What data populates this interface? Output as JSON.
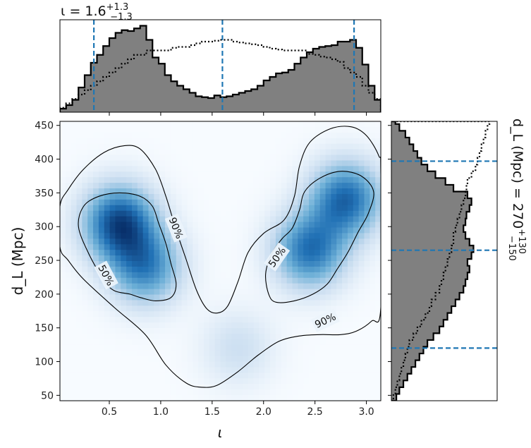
{
  "chart_data": {
    "type": "heatmap",
    "title": {
      "text": "ι = 1.6",
      "sup": "+1.3",
      "sub": "−1.3"
    },
    "side_title": {
      "text": "d_L (Mpc) = 270",
      "sup": "+130",
      "sub": "−150"
    },
    "xlabel": "ι",
    "ylabel": "d_L (Mpc)",
    "xlim": [
      0.02,
      3.14
    ],
    "ylim": [
      42,
      456
    ],
    "xticks": [
      0.5,
      1.0,
      1.5,
      2.0,
      2.5,
      3.0
    ],
    "xtick_labels": [
      "0.5",
      "1.0",
      "1.5",
      "2.0",
      "2.5",
      "3.0"
    ],
    "yticks": [
      50,
      100,
      150,
      200,
      250,
      300,
      350,
      400,
      450
    ],
    "ytick_labels": [
      "50",
      "100",
      "150",
      "200",
      "250",
      "300",
      "350",
      "400",
      "450"
    ],
    "colormap": "Blues",
    "density_peaks": [
      {
        "x": 0.6,
        "y": 305,
        "weight": 1.0
      },
      {
        "x": 0.85,
        "y": 240,
        "weight": 0.7
      },
      {
        "x": 2.8,
        "y": 340,
        "weight": 0.85
      },
      {
        "x": 2.45,
        "y": 265,
        "weight": 0.8
      },
      {
        "x": 1.75,
        "y": 120,
        "weight": 0.2
      }
    ],
    "contours": [
      {
        "label": "50%",
        "label_at": [
          0.47,
          228
        ],
        "label_angle": 62,
        "points": [
          [
            0.45,
            220
          ],
          [
            0.3,
            260
          ],
          [
            0.2,
            300
          ],
          [
            0.25,
            330
          ],
          [
            0.4,
            345
          ],
          [
            0.6,
            350
          ],
          [
            0.8,
            345
          ],
          [
            0.92,
            330
          ],
          [
            0.98,
            305
          ],
          [
            1.05,
            275
          ],
          [
            1.1,
            245
          ],
          [
            1.15,
            215
          ],
          [
            1.1,
            195
          ],
          [
            0.95,
            190
          ],
          [
            0.8,
            195
          ],
          [
            0.7,
            200
          ],
          [
            0.55,
            205
          ]
        ]
      },
      {
        "label": "50%",
        "label_at": [
          2.13,
          255
        ],
        "label_angle": -55,
        "points": [
          [
            2.05,
            200
          ],
          [
            2.02,
            230
          ],
          [
            2.08,
            260
          ],
          [
            2.18,
            282
          ],
          [
            2.28,
            298
          ],
          [
            2.35,
            325
          ],
          [
            2.4,
            352
          ],
          [
            2.55,
            372
          ],
          [
            2.75,
            382
          ],
          [
            2.95,
            375
          ],
          [
            3.07,
            352
          ],
          [
            3.02,
            320
          ],
          [
            2.92,
            292
          ],
          [
            2.82,
            262
          ],
          [
            2.72,
            238
          ],
          [
            2.62,
            215
          ],
          [
            2.48,
            200
          ],
          [
            2.3,
            190
          ],
          [
            2.12,
            188
          ]
        ]
      },
      {
        "label": "90%",
        "label_at": [
          2.6,
          161
        ],
        "label_angle": -25,
        "points": [
          [
            0.02,
            330
          ],
          [
            0.1,
            355
          ],
          [
            0.25,
            385
          ],
          [
            0.45,
            410
          ],
          [
            0.65,
            420
          ],
          [
            0.8,
            415
          ],
          [
            0.95,
            385
          ],
          [
            1.05,
            345
          ],
          [
            1.15,
            295
          ],
          [
            1.25,
            250
          ],
          [
            1.35,
            205
          ],
          [
            1.45,
            178
          ],
          [
            1.55,
            172
          ],
          [
            1.65,
            182
          ],
          [
            1.75,
            218
          ],
          [
            1.85,
            262
          ],
          [
            2.0,
            290
          ],
          [
            2.2,
            310
          ],
          [
            2.3,
            345
          ],
          [
            2.35,
            390
          ],
          [
            2.45,
            425
          ],
          [
            2.65,
            445
          ],
          [
            2.85,
            448
          ],
          [
            3.0,
            435
          ],
          [
            3.12,
            405
          ],
          [
            3.14,
            380
          ],
          [
            3.14,
            180
          ],
          [
            3.05,
            160
          ],
          [
            2.9,
            145
          ],
          [
            2.75,
            140
          ],
          [
            2.55,
            140
          ],
          [
            2.35,
            138
          ],
          [
            2.15,
            130
          ],
          [
            1.95,
            110
          ],
          [
            1.75,
            85
          ],
          [
            1.55,
            65
          ],
          [
            1.4,
            62
          ],
          [
            1.25,
            68
          ],
          [
            1.05,
            95
          ],
          [
            0.85,
            140
          ],
          [
            0.55,
            180
          ],
          [
            0.25,
            222
          ],
          [
            0.1,
            250
          ],
          [
            0.02,
            270
          ]
        ]
      }
    ],
    "contour_90_label2": {
      "label": "90%",
      "label_at": [
        1.15,
        298
      ],
      "label_angle": 68
    },
    "top_hist": {
      "bin_edges": [
        0.02,
        0.08,
        0.14,
        0.2,
        0.26,
        0.32,
        0.38,
        0.44,
        0.5,
        0.56,
        0.62,
        0.68,
        0.74,
        0.8,
        0.86,
        0.92,
        0.98,
        1.04,
        1.1,
        1.16,
        1.22,
        1.28,
        1.34,
        1.4,
        1.46,
        1.52,
        1.58,
        1.64,
        1.7,
        1.76,
        1.82,
        1.88,
        1.94,
        2.0,
        2.06,
        2.12,
        2.18,
        2.24,
        2.3,
        2.36,
        2.42,
        2.48,
        2.54,
        2.6,
        2.66,
        2.72,
        2.78,
        2.84,
        2.9,
        2.96,
        3.02,
        3.08,
        3.14
      ],
      "posterior": [
        0.04,
        0.08,
        0.14,
        0.28,
        0.42,
        0.56,
        0.65,
        0.75,
        0.84,
        0.9,
        0.93,
        0.92,
        0.95,
        0.98,
        0.82,
        0.62,
        0.55,
        0.42,
        0.35,
        0.3,
        0.26,
        0.22,
        0.18,
        0.17,
        0.16,
        0.19,
        0.17,
        0.18,
        0.2,
        0.22,
        0.24,
        0.26,
        0.3,
        0.36,
        0.4,
        0.44,
        0.45,
        0.48,
        0.55,
        0.62,
        0.68,
        0.72,
        0.74,
        0.75,
        0.76,
        0.8,
        0.8,
        0.82,
        0.73,
        0.54,
        0.3,
        0.14
      ],
      "prior": [
        0.05,
        0.1,
        0.15,
        0.2,
        0.25,
        0.3,
        0.35,
        0.4,
        0.45,
        0.5,
        0.55,
        0.6,
        0.65,
        0.65,
        0.7,
        0.7,
        0.7,
        0.7,
        0.73,
        0.74,
        0.74,
        0.76,
        0.78,
        0.8,
        0.8,
        0.81,
        0.82,
        0.82,
        0.8,
        0.79,
        0.78,
        0.77,
        0.76,
        0.74,
        0.72,
        0.71,
        0.7,
        0.7,
        0.7,
        0.7,
        0.66,
        0.65,
        0.63,
        0.62,
        0.6,
        0.57,
        0.5,
        0.45,
        0.4,
        0.3,
        0.22,
        0.15
      ],
      "lines": [
        0.35,
        1.6,
        2.88
      ]
    },
    "side_hist": {
      "bin_edges": [
        42,
        52,
        62,
        72,
        82,
        92,
        102,
        112,
        122,
        132,
        142,
        152,
        162,
        172,
        182,
        192,
        202,
        212,
        222,
        232,
        242,
        252,
        262,
        272,
        282,
        292,
        302,
        312,
        322,
        332,
        342,
        352,
        362,
        372,
        382,
        392,
        402,
        412,
        422,
        432,
        442,
        452,
        456
      ],
      "posterior": [
        0.05,
        0.08,
        0.12,
        0.16,
        0.2,
        0.24,
        0.28,
        0.32,
        0.36,
        0.42,
        0.48,
        0.52,
        0.56,
        0.6,
        0.64,
        0.68,
        0.72,
        0.74,
        0.76,
        0.78,
        0.76,
        0.8,
        0.82,
        0.78,
        0.74,
        0.72,
        0.74,
        0.75,
        0.78,
        0.8,
        0.76,
        0.62,
        0.54,
        0.44,
        0.36,
        0.3,
        0.26,
        0.22,
        0.18,
        0.14,
        0.08,
        0.04
      ],
      "prior": [
        0.02,
        0.04,
        0.06,
        0.08,
        0.1,
        0.12,
        0.14,
        0.16,
        0.18,
        0.22,
        0.26,
        0.3,
        0.34,
        0.38,
        0.4,
        0.44,
        0.48,
        0.5,
        0.52,
        0.54,
        0.56,
        0.58,
        0.6,
        0.62,
        0.62,
        0.64,
        0.66,
        0.68,
        0.7,
        0.72,
        0.74,
        0.75,
        0.76,
        0.8,
        0.84,
        0.86,
        0.88,
        0.9,
        0.92,
        0.94,
        0.96,
        0.98
      ],
      "lines": [
        120,
        265,
        397
      ]
    }
  }
}
